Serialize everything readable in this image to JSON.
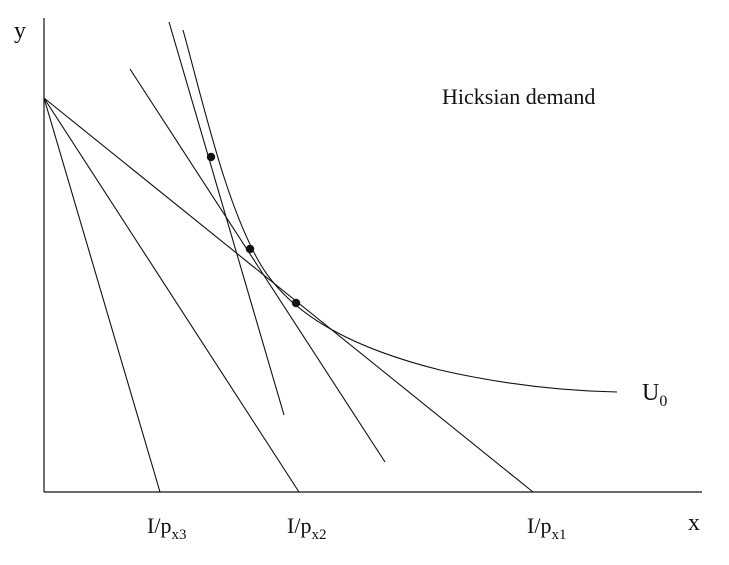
{
  "diagram": {
    "title": "Hicksian demand",
    "axes": {
      "x_label": "x",
      "y_label": "y"
    },
    "curve_label": {
      "main": "U",
      "sub": "0"
    },
    "intercepts": [
      {
        "main": "I/p",
        "sub": "x3"
      },
      {
        "main": "I/p",
        "sub": "x2"
      },
      {
        "main": "I/p",
        "sub": "x1"
      }
    ],
    "budget_lines_count": 3,
    "compensated_lines_count": 2,
    "tangency_points_count": 3
  },
  "colors": {
    "ink": "#111111",
    "background": "#ffffff"
  }
}
